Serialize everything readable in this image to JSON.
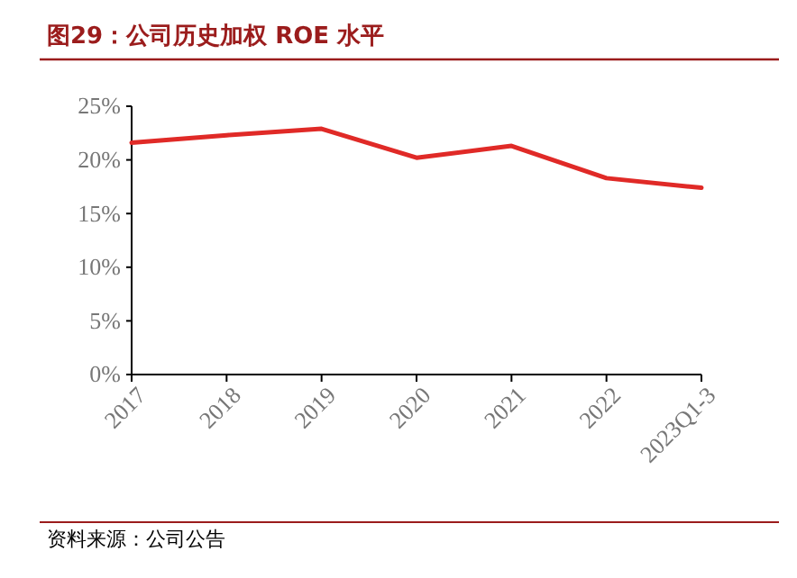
{
  "chart_data": {
    "type": "line",
    "title": "图29：公司历史加权 ROE 水平",
    "categories": [
      "2017",
      "2018",
      "2019",
      "2020",
      "2021",
      "2022",
      "2023Q1-3"
    ],
    "series": [
      {
        "color": "#e02a27",
        "values": [
          21.6,
          22.3,
          22.9,
          20.2,
          21.3,
          18.3,
          17.4
        ]
      }
    ],
    "ylim": [
      0,
      25
    ],
    "yticks": [
      {
        "value": 0,
        "label": "0%"
      },
      {
        "value": 5,
        "label": "5%"
      },
      {
        "value": 10,
        "label": "10%"
      },
      {
        "value": 15,
        "label": "15%"
      },
      {
        "value": 20,
        "label": "20%"
      },
      {
        "value": 25,
        "label": "25%"
      }
    ],
    "grid": false,
    "marker": "none",
    "line_style": "solid",
    "annotations": [
      "资料来源：公司公告"
    ]
  }
}
